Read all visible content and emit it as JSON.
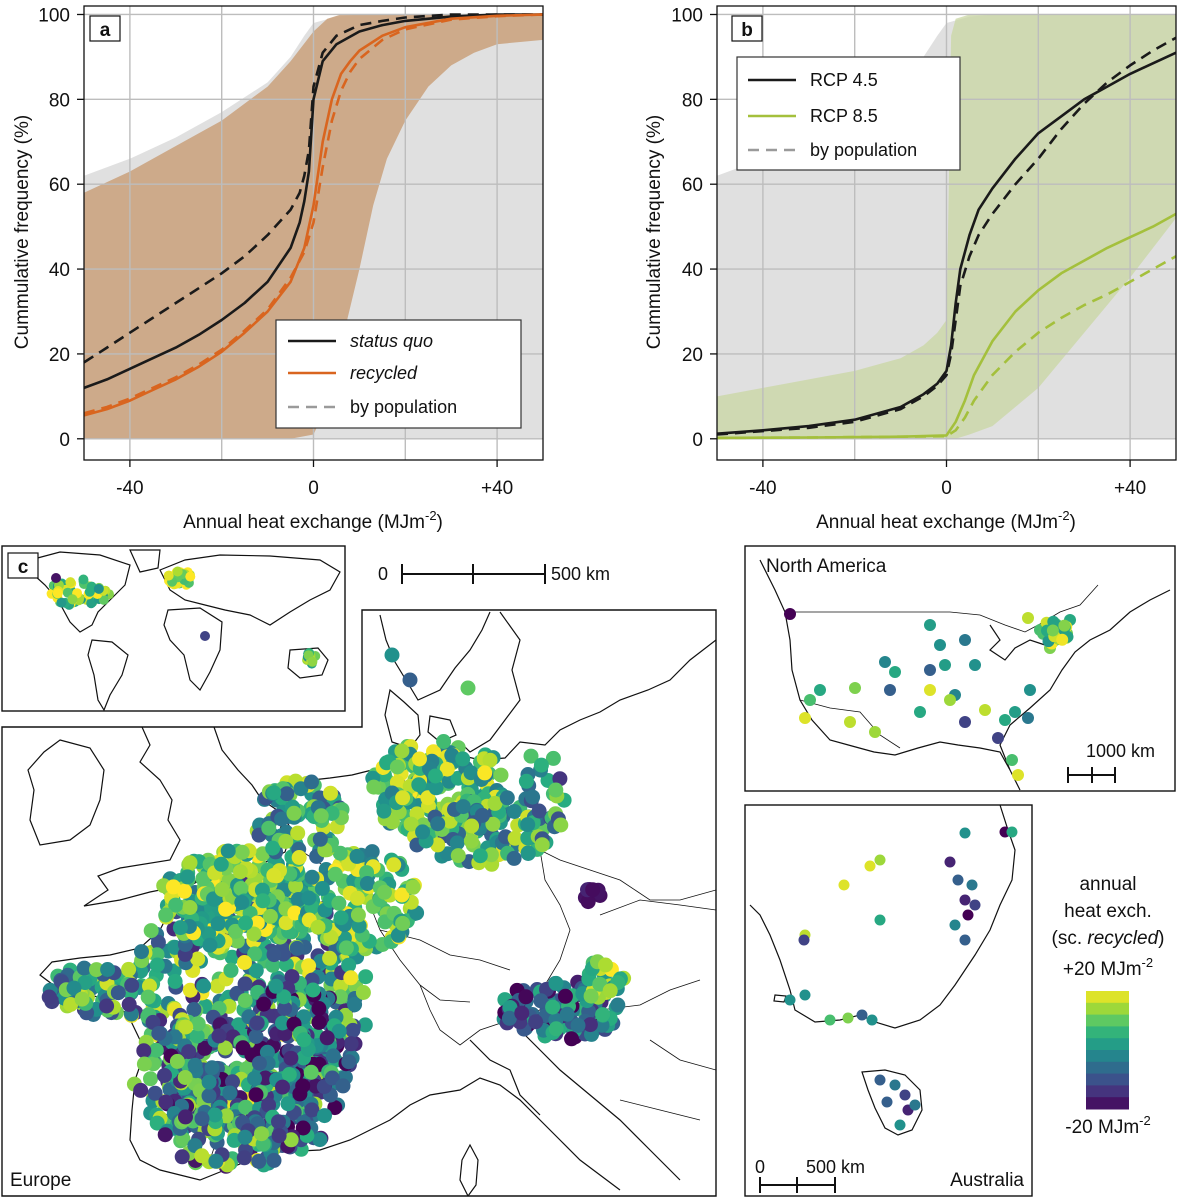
{
  "colors": {
    "status_quo": "#1a1a1a",
    "recycled": "#d9651f",
    "recycled_band": "#c9a07a",
    "rcp45": "#1a1a1a",
    "rcp85": "#a4c03c",
    "grey_band": "#d6d6d6",
    "green_band": "#c9d7a3",
    "viridis": [
      "#440154",
      "#472d7b",
      "#3b528b",
      "#2c728e",
      "#21918c",
      "#28ae80",
      "#5ec962",
      "#addc30",
      "#fde725"
    ]
  },
  "chart_data": [
    {
      "id": "a",
      "panel_label": "a",
      "type": "line",
      "xlabel": "Annual heat exchange (MJm",
      "xlabel_sup": "-2",
      "ylabel": "Cummulative frequency (%)",
      "xlim": [
        -50,
        50
      ],
      "ylim": [
        -5,
        102
      ],
      "xticks": [
        -40,
        0,
        40
      ],
      "xtick_labels": [
        "-40",
        "0",
        "+40"
      ],
      "yticks": [
        0,
        20,
        40,
        60,
        80,
        100
      ],
      "ytick_labels": [
        "0",
        "20",
        "40",
        "60",
        "80",
        "100"
      ],
      "grid": true,
      "legend_position": "bottom-right",
      "legend": [
        {
          "label": "status quo",
          "style": "solid",
          "color_key": "status_quo",
          "italic": true
        },
        {
          "label": "recycled",
          "style": "solid",
          "color_key": "recycled",
          "italic": true
        },
        {
          "label": "by population",
          "style": "dashed",
          "color_key": "grey",
          "italic": false
        }
      ],
      "series": [
        {
          "name": "status quo",
          "style": "solid",
          "color_key": "status_quo",
          "x": [
            -50,
            -45,
            -40,
            -35,
            -30,
            -25,
            -20,
            -15,
            -10,
            -5,
            -3,
            -2,
            -1,
            0,
            2,
            5,
            10,
            15,
            20,
            30,
            40,
            50
          ],
          "y": [
            12,
            14,
            16.5,
            19,
            21.5,
            24.5,
            28,
            32,
            37,
            45,
            51,
            56,
            63,
            80,
            89,
            93,
            96,
            97.5,
            98.5,
            99.5,
            100,
            100
          ]
        },
        {
          "name": "status quo by population",
          "style": "dashed",
          "color_key": "status_quo",
          "x": [
            -50,
            -45,
            -40,
            -35,
            -30,
            -25,
            -20,
            -15,
            -10,
            -5,
            -3,
            -2,
            -1,
            0,
            2,
            5,
            10,
            15,
            20,
            30,
            40,
            50
          ],
          "y": [
            18,
            21.5,
            25,
            28.5,
            32,
            35.5,
            39,
            43,
            48,
            54,
            58,
            62,
            68,
            83,
            91,
            95,
            97.5,
            98.5,
            99.3,
            100,
            100,
            100
          ]
        },
        {
          "name": "recycled",
          "style": "solid",
          "color_key": "recycled",
          "x": [
            -50,
            -45,
            -40,
            -35,
            -30,
            -25,
            -20,
            -15,
            -10,
            -5,
            -2,
            0,
            2,
            4,
            6,
            8,
            10,
            15,
            20,
            30,
            40,
            50
          ],
          "y": [
            5.5,
            7,
            9,
            11.5,
            14,
            17,
            20.5,
            25,
            30,
            37,
            45,
            55,
            70,
            80,
            86,
            89,
            91.5,
            95,
            97,
            99,
            99.7,
            100
          ]
        },
        {
          "name": "recycled by population",
          "style": "dashed",
          "color_key": "recycled",
          "x": [
            -50,
            -45,
            -40,
            -35,
            -30,
            -25,
            -20,
            -15,
            -10,
            -5,
            -2,
            0,
            2,
            4,
            6,
            8,
            10,
            15,
            20,
            30,
            40,
            50
          ],
          "y": [
            6,
            7.5,
            9.5,
            12,
            14.5,
            17.5,
            21,
            25.5,
            30.5,
            38,
            44,
            51,
            64,
            75,
            82,
            86.5,
            89.5,
            94,
            96.5,
            98.8,
            99.6,
            100
          ]
        }
      ],
      "bands": [
        {
          "name": "status quo range",
          "color_key": "grey_band",
          "x": [
            -50,
            -40,
            -30,
            -20,
            -10,
            -5,
            -2,
            0,
            5,
            10,
            15,
            20,
            30,
            40,
            50
          ],
          "upper": [
            62,
            66,
            71,
            77,
            84,
            90,
            95,
            98,
            99.5,
            100,
            100,
            100,
            100,
            100,
            100
          ],
          "lower": [
            0,
            0,
            0,
            0,
            0,
            0,
            0,
            0,
            0,
            0,
            0,
            0,
            0,
            0,
            0
          ]
        },
        {
          "name": "recycled range",
          "color_key": "recycled_band",
          "x": [
            -50,
            -40,
            -30,
            -20,
            -10,
            -5,
            0,
            3,
            6,
            10,
            13,
            16,
            20,
            25,
            30,
            35,
            40,
            50
          ],
          "upper": [
            58,
            63,
            69,
            75,
            83,
            89,
            96,
            99,
            100,
            100,
            100,
            100,
            100,
            100,
            100,
            100,
            100,
            100
          ],
          "lower": [
            0,
            0,
            0,
            0,
            0,
            0,
            1,
            8,
            22,
            40,
            55,
            66,
            75,
            83,
            88,
            91,
            93,
            94
          ]
        }
      ]
    },
    {
      "id": "b",
      "panel_label": "b",
      "type": "line",
      "xlabel": "Annual heat exchange (MJm",
      "xlabel_sup": "-2",
      "ylabel": "Cummulative frequency (%)",
      "xlim": [
        -50,
        50
      ],
      "ylim": [
        -5,
        102
      ],
      "xticks": [
        -40,
        0,
        40
      ],
      "xtick_labels": [
        "-40",
        "0",
        "+40"
      ],
      "yticks": [
        0,
        20,
        40,
        60,
        80,
        100
      ],
      "ytick_labels": [
        "0",
        "20",
        "40",
        "60",
        "80",
        "100"
      ],
      "grid": true,
      "legend_position": "top-left",
      "legend": [
        {
          "label": "RCP 4.5",
          "style": "solid",
          "color_key": "rcp45",
          "italic": false
        },
        {
          "label": "RCP 8.5",
          "style": "solid",
          "color_key": "rcp85",
          "italic": false
        },
        {
          "label": "by population",
          "style": "dashed",
          "color_key": "grey",
          "italic": false
        }
      ],
      "series": [
        {
          "name": "RCP 4.5",
          "style": "solid",
          "color_key": "rcp45",
          "x": [
            -50,
            -40,
            -30,
            -20,
            -10,
            -5,
            -2,
            0,
            1,
            2,
            3,
            5,
            7,
            10,
            15,
            20,
            25,
            30,
            35,
            40,
            45,
            50
          ],
          "y": [
            1.2,
            2,
            3,
            4.5,
            7.5,
            10.5,
            13,
            16,
            22,
            32,
            40,
            48,
            54,
            59,
            66,
            72,
            76,
            80,
            83,
            86,
            88.5,
            91
          ]
        },
        {
          "name": "RCP 4.5 by population",
          "style": "dashed",
          "color_key": "rcp45",
          "x": [
            -50,
            -40,
            -30,
            -20,
            -10,
            -5,
            -2,
            0,
            1,
            2,
            3,
            5,
            7,
            10,
            15,
            20,
            25,
            30,
            35,
            40,
            45,
            50
          ],
          "y": [
            1,
            1.8,
            2.6,
            4,
            7,
            10,
            12.5,
            15,
            20,
            28,
            36,
            43,
            48,
            53,
            60,
            66,
            73,
            79,
            84,
            88,
            91.5,
            94.5
          ]
        },
        {
          "name": "RCP 8.5",
          "style": "solid",
          "color_key": "rcp85",
          "x": [
            -50,
            -30,
            -10,
            0,
            2,
            4,
            6,
            10,
            15,
            20,
            25,
            30,
            35,
            40,
            45,
            50
          ],
          "y": [
            0.2,
            0.3,
            0.5,
            0.8,
            4,
            9,
            15,
            23,
            30,
            35,
            39,
            42,
            45,
            47.5,
            50,
            53
          ]
        },
        {
          "name": "RCP 8.5 by population",
          "style": "dashed",
          "color_key": "rcp85",
          "x": [
            -50,
            -30,
            -10,
            0,
            2,
            4,
            6,
            10,
            15,
            20,
            25,
            30,
            35,
            40,
            45,
            50
          ],
          "y": [
            0.2,
            0.3,
            0.5,
            0.6,
            2,
            5,
            9,
            15,
            20.5,
            25,
            28.5,
            31.5,
            34,
            37,
            40,
            43
          ]
        }
      ],
      "bands": [
        {
          "name": "RCP 4.5 range",
          "color_key": "grey_band",
          "x": [
            -50,
            -40,
            -30,
            -20,
            -10,
            -5,
            -2,
            0,
            5,
            10,
            20,
            30,
            40,
            50
          ],
          "upper": [
            62,
            66,
            71,
            77,
            84,
            90,
            95,
            98,
            99.5,
            100,
            100,
            100,
            100,
            100
          ],
          "lower": [
            0,
            0,
            0,
            0,
            0,
            0,
            0,
            0,
            0,
            0,
            0,
            0,
            0,
            0
          ]
        },
        {
          "name": "RCP 8.5 range",
          "color_key": "green_band",
          "x": [
            -50,
            -40,
            -30,
            -20,
            -10,
            -5,
            -2,
            0,
            0.5,
            1,
            2,
            5,
            10,
            20,
            30,
            40,
            50
          ],
          "upper": [
            10,
            12,
            14,
            16,
            19,
            22,
            25,
            28,
            60,
            95,
            99,
            100,
            100,
            100,
            100,
            100,
            100
          ],
          "lower": [
            0,
            0,
            0,
            0,
            0,
            0,
            0,
            0,
            0,
            0,
            0,
            1,
            3,
            12,
            25,
            38,
            52
          ]
        }
      ]
    },
    {
      "id": "c",
      "panel_label": "c",
      "type": "scatter",
      "colorbar": {
        "title_line1": "annual",
        "title_line2": "heat exch.",
        "title_line3_pre": "(sc. ",
        "title_line3_ital": "recycled",
        "title_line3_post": ")",
        "max_label": "+20 MJm",
        "min_label": "-20 MJm",
        "unit_sup": "-2",
        "vmin": -20,
        "vmax": 20,
        "levels": 10
      },
      "maps": {
        "europe": {
          "label": "Europe",
          "scale_zero": "0",
          "scale_label": "500 km"
        },
        "north_america": {
          "label": "North America",
          "scale_label": "1000 km"
        },
        "australia": {
          "label": "Australia",
          "scale_zero": "0",
          "scale_label": "500 km"
        },
        "world": {
          "label": ""
        }
      }
    }
  ]
}
